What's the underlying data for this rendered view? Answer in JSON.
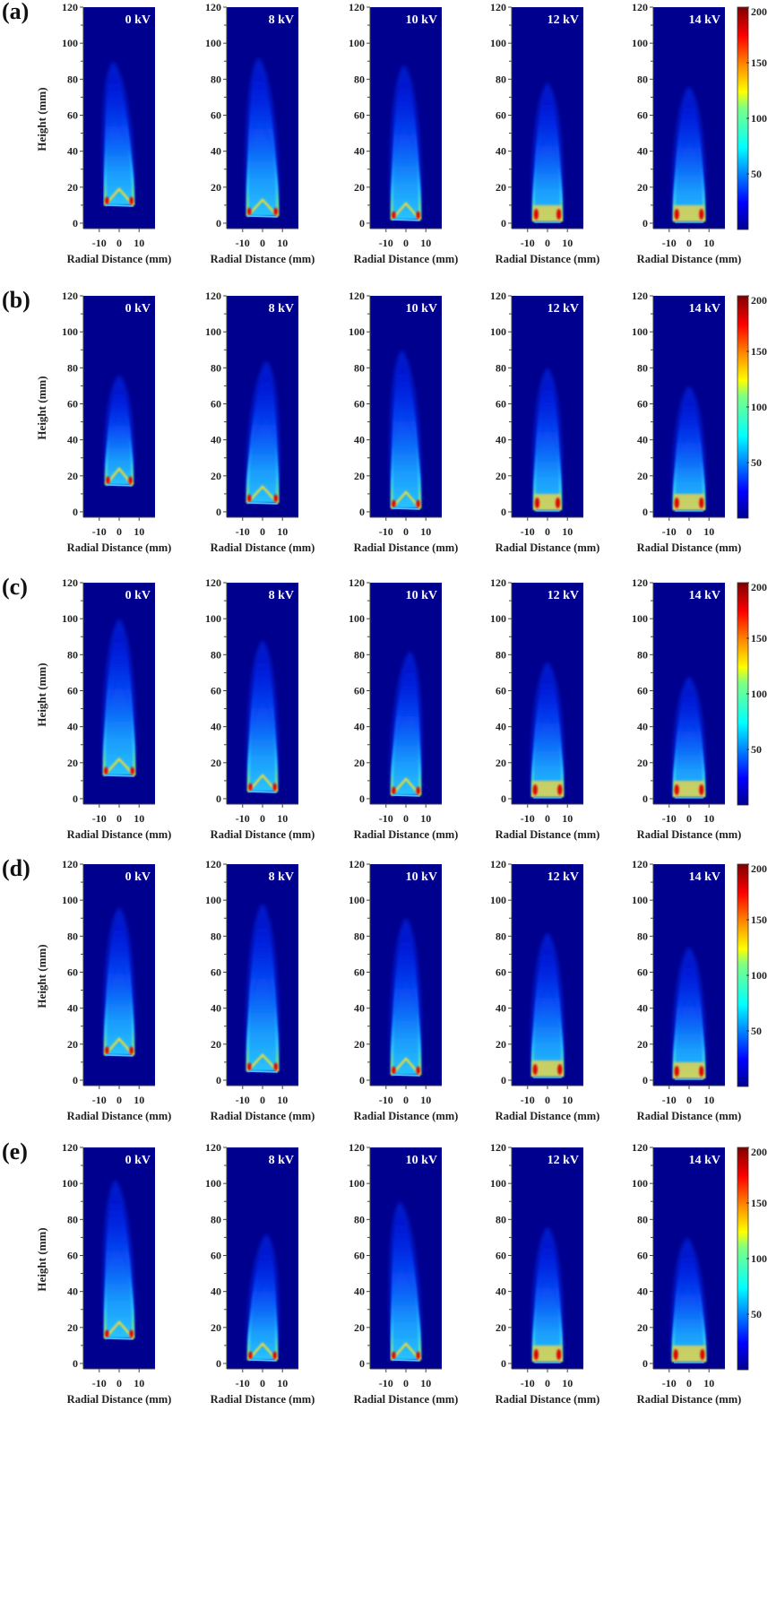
{
  "figure": {
    "rows": [
      {
        "label": "(a)",
        "panels": [
          {
            "voltage": "0 kV",
            "base": 10,
            "tip": 90,
            "width": 7.5,
            "tilt": -3,
            "shape": "cone"
          },
          {
            "voltage": "8 kV",
            "base": 4,
            "tip": 92,
            "width": 8,
            "tilt": -2,
            "shape": "cone"
          },
          {
            "voltage": "10 kV",
            "base": 2,
            "tip": 88,
            "width": 7.5,
            "tilt": -1,
            "shape": "cone"
          },
          {
            "voltage": "12 kV",
            "base": 1,
            "tip": 78,
            "width": 7.5,
            "tilt": 0,
            "shape": "rect"
          },
          {
            "voltage": "14 kV",
            "base": 1,
            "tip": 76,
            "width": 8,
            "tilt": 0,
            "shape": "rect"
          }
        ]
      },
      {
        "label": "(b)",
        "panels": [
          {
            "voltage": "0 kV",
            "base": 15,
            "tip": 76,
            "width": 7,
            "tilt": 0,
            "shape": "cone"
          },
          {
            "voltage": "8 kV",
            "base": 5,
            "tip": 84,
            "width": 8,
            "tilt": 2,
            "shape": "cone"
          },
          {
            "voltage": "10 kV",
            "base": 2,
            "tip": 90,
            "width": 7.5,
            "tilt": -2,
            "shape": "cone"
          },
          {
            "voltage": "12 kV",
            "base": 1,
            "tip": 80,
            "width": 7,
            "tilt": 0,
            "shape": "rect"
          },
          {
            "voltage": "14 kV",
            "base": 1,
            "tip": 70,
            "width": 8,
            "tilt": 0,
            "shape": "rect"
          }
        ]
      },
      {
        "label": "(c)",
        "panels": [
          {
            "voltage": "0 kV",
            "base": 13,
            "tip": 100,
            "width": 8,
            "tilt": 0,
            "shape": "cone"
          },
          {
            "voltage": "8 kV",
            "base": 4,
            "tip": 88,
            "width": 7.5,
            "tilt": 0,
            "shape": "cone"
          },
          {
            "voltage": "10 kV",
            "base": 2,
            "tip": 82,
            "width": 7.5,
            "tilt": 2,
            "shape": "cone"
          },
          {
            "voltage": "12 kV",
            "base": 1,
            "tip": 76,
            "width": 8,
            "tilt": 0,
            "shape": "rect"
          },
          {
            "voltage": "14 kV",
            "base": 1,
            "tip": 68,
            "width": 8,
            "tilt": 0,
            "shape": "rect"
          }
        ]
      },
      {
        "label": "(d)",
        "panels": [
          {
            "voltage": "0 kV",
            "base": 14,
            "tip": 96,
            "width": 7.5,
            "tilt": 0,
            "shape": "cone"
          },
          {
            "voltage": "8 kV",
            "base": 5,
            "tip": 98,
            "width": 8,
            "tilt": 0,
            "shape": "cone"
          },
          {
            "voltage": "10 kV",
            "base": 3,
            "tip": 90,
            "width": 7.5,
            "tilt": 0,
            "shape": "cone"
          },
          {
            "voltage": "12 kV",
            "base": 2,
            "tip": 82,
            "width": 8,
            "tilt": 0,
            "shape": "rect"
          },
          {
            "voltage": "14 kV",
            "base": 1,
            "tip": 74,
            "width": 8,
            "tilt": 0,
            "shape": "rect"
          }
        ]
      },
      {
        "label": "(e)",
        "panels": [
          {
            "voltage": "0 kV",
            "base": 14,
            "tip": 102,
            "width": 7.5,
            "tilt": -2,
            "shape": "cone"
          },
          {
            "voltage": "8 kV",
            "base": 2,
            "tip": 72,
            "width": 7.5,
            "tilt": 2,
            "shape": "cone"
          },
          {
            "voltage": "10 kV",
            "base": 2,
            "tip": 90,
            "width": 7.5,
            "tilt": -3,
            "shape": "cone"
          },
          {
            "voltage": "12 kV",
            "base": 1,
            "tip": 76,
            "width": 7.5,
            "tilt": 0,
            "shape": "rect"
          },
          {
            "voltage": "14 kV",
            "base": 1,
            "tip": 70,
            "width": 8.5,
            "tilt": -1,
            "shape": "rect"
          }
        ]
      }
    ]
  },
  "chart_data": {
    "type": "heatmap",
    "title": "",
    "xlabel": "Radial Distance (mm)",
    "ylabel": "Height (mm)",
    "xlim": [
      -18,
      18
    ],
    "ylim": [
      -3,
      120
    ],
    "xticks": [
      -10,
      0,
      10
    ],
    "xtick_labels": [
      "-10",
      "0",
      "10"
    ],
    "yticks": [
      0,
      20,
      40,
      60,
      80,
      100,
      120
    ],
    "ytick_labels": [
      "0",
      "20",
      "40",
      "60",
      "80",
      "100",
      "120"
    ],
    "colorbar": {
      "range": [
        0,
        200
      ],
      "ticks": [
        50,
        100,
        150,
        200
      ],
      "tick_labels": [
        "50",
        "100",
        "150",
        "200"
      ],
      "colormap": "jet"
    },
    "row_labels": [
      "(a)",
      "(b)",
      "(c)",
      "(d)",
      "(e)"
    ],
    "column_labels": [
      "0 kV",
      "8 kV",
      "10 kV",
      "12 kV",
      "14 kV"
    ],
    "grid": false,
    "colors": {
      "background": "#00008f",
      "low": "#0000ff",
      "mid": "#00ffff",
      "high": "#ffff00",
      "peak": "#ff0000",
      "max": "#800000"
    }
  }
}
